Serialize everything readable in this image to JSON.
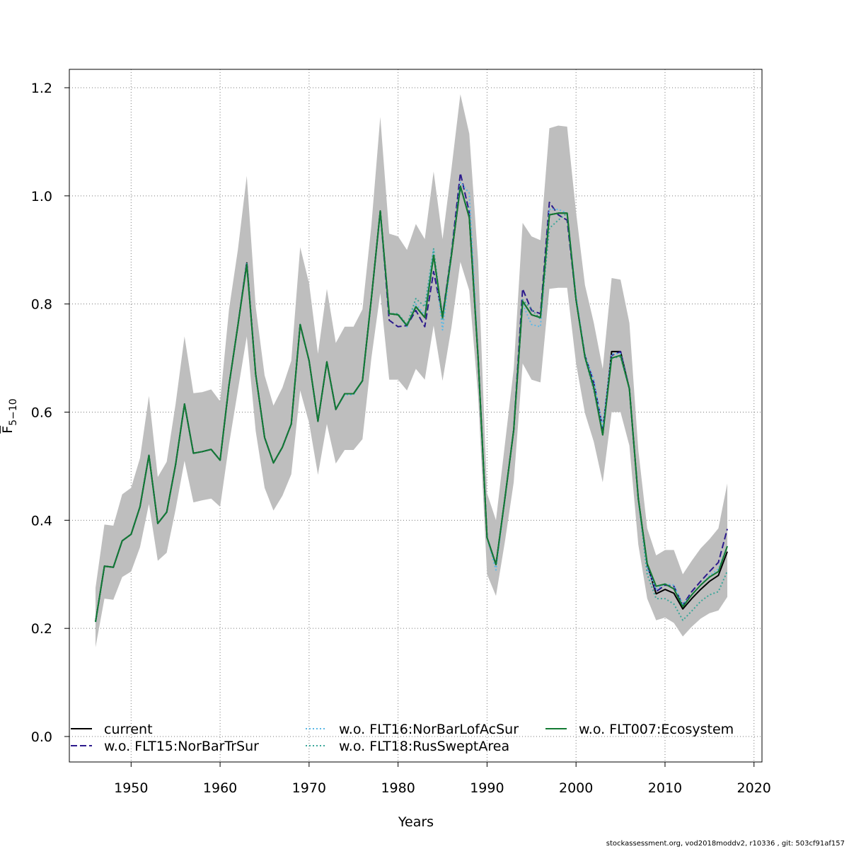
{
  "chart_data": {
    "type": "line",
    "xlabel": "Years",
    "ylabel": "F",
    "ylabel_sub": "5−10",
    "xlim": [
      1943,
      2021
    ],
    "ylim": [
      -0.05,
      1.24
    ],
    "xticks": [
      "1950",
      "1960",
      "1970",
      "1980",
      "1990",
      "2000",
      "2010",
      "2020"
    ],
    "yticks": [
      "0.0",
      "0.2",
      "0.4",
      "0.6",
      "0.8",
      "1.0",
      "1.2"
    ],
    "grid": true,
    "legend_position": "bottom",
    "x": [
      1946,
      1947,
      1948,
      1949,
      1950,
      1951,
      1952,
      1953,
      1954,
      1955,
      1956,
      1957,
      1958,
      1959,
      1960,
      1961,
      1962,
      1963,
      1964,
      1965,
      1966,
      1967,
      1968,
      1969,
      1970,
      1971,
      1972,
      1973,
      1974,
      1975,
      1976,
      1977,
      1978,
      1979,
      1980,
      1981,
      1982,
      1983,
      1984,
      1985,
      1986,
      1987,
      1988,
      1989,
      1990,
      1991,
      1992,
      1993,
      1994,
      1995,
      1996,
      1997,
      1998,
      1999,
      2000,
      2001,
      2002,
      2003,
      2004,
      2005,
      2006,
      2007,
      2008,
      2009,
      2010,
      2011,
      2012,
      2013,
      2014,
      2015,
      2016,
      2017
    ],
    "ci_lower": [
      0.165,
      0.255,
      0.253,
      0.295,
      0.305,
      0.35,
      0.43,
      0.325,
      0.34,
      0.42,
      0.51,
      0.433,
      0.437,
      0.44,
      0.425,
      0.54,
      0.64,
      0.74,
      0.565,
      0.46,
      0.418,
      0.445,
      0.485,
      0.64,
      0.58,
      0.484,
      0.578,
      0.505,
      0.53,
      0.53,
      0.55,
      0.7,
      0.82,
      0.66,
      0.66,
      0.64,
      0.68,
      0.66,
      0.76,
      0.658,
      0.757,
      0.878,
      0.825,
      0.63,
      0.3,
      0.26,
      0.36,
      0.47,
      0.69,
      0.66,
      0.655,
      0.828,
      0.83,
      0.83,
      0.69,
      0.598,
      0.545,
      0.47,
      0.6,
      0.6,
      0.538,
      0.355,
      0.255,
      0.215,
      0.22,
      0.21,
      0.185,
      0.203,
      0.218,
      0.228,
      0.233,
      0.258
    ],
    "ci_upper": [
      0.275,
      0.392,
      0.39,
      0.448,
      0.46,
      0.515,
      0.63,
      0.48,
      0.508,
      0.615,
      0.74,
      0.635,
      0.637,
      0.642,
      0.62,
      0.79,
      0.9,
      1.037,
      0.795,
      0.668,
      0.612,
      0.645,
      0.695,
      0.905,
      0.838,
      0.708,
      0.828,
      0.728,
      0.758,
      0.758,
      0.79,
      0.945,
      1.146,
      0.93,
      0.925,
      0.9,
      0.948,
      0.92,
      1.045,
      0.92,
      1.05,
      1.188,
      1.115,
      0.88,
      0.45,
      0.4,
      0.54,
      0.68,
      0.95,
      0.925,
      0.918,
      1.125,
      1.13,
      1.128,
      0.97,
      0.835,
      0.765,
      0.68,
      0.848,
      0.845,
      0.765,
      0.53,
      0.385,
      0.335,
      0.345,
      0.345,
      0.3,
      0.325,
      0.348,
      0.365,
      0.385,
      0.468
    ],
    "series": [
      {
        "name": "current",
        "color": "#000000",
        "dash": "solid",
        "values": [
          0.212,
          0.315,
          0.313,
          0.362,
          0.374,
          0.425,
          0.52,
          0.394,
          0.415,
          0.503,
          0.615,
          0.524,
          0.527,
          0.531,
          0.511,
          0.65,
          0.76,
          0.876,
          0.67,
          0.553,
          0.506,
          0.535,
          0.578,
          0.762,
          0.695,
          0.583,
          0.693,
          0.605,
          0.634,
          0.634,
          0.658,
          0.81,
          0.972,
          0.782,
          0.78,
          0.76,
          0.795,
          0.775,
          0.89,
          0.775,
          0.89,
          1.018,
          0.96,
          0.7,
          0.368,
          0.318,
          0.44,
          0.567,
          0.805,
          0.78,
          0.775,
          0.965,
          0.968,
          0.968,
          0.808,
          0.702,
          0.645,
          0.558,
          0.712,
          0.712,
          0.643,
          0.44,
          0.318,
          0.264,
          0.272,
          0.265,
          0.236,
          0.255,
          0.272,
          0.287,
          0.298,
          0.342
        ]
      },
      {
        "name": "w.o. FLT15:NorBarTrSur",
        "color": "#2c1a8c",
        "dash": "longdash",
        "values": [
          0.212,
          0.315,
          0.313,
          0.362,
          0.374,
          0.425,
          0.52,
          0.394,
          0.415,
          0.503,
          0.615,
          0.524,
          0.527,
          0.531,
          0.511,
          0.65,
          0.76,
          0.878,
          0.67,
          0.553,
          0.506,
          0.535,
          0.578,
          0.762,
          0.695,
          0.583,
          0.693,
          0.605,
          0.634,
          0.634,
          0.658,
          0.81,
          0.972,
          0.77,
          0.758,
          0.76,
          0.788,
          0.758,
          0.86,
          0.778,
          0.895,
          1.042,
          0.97,
          0.7,
          0.368,
          0.318,
          0.44,
          0.567,
          0.828,
          0.788,
          0.782,
          0.988,
          0.965,
          0.955,
          0.808,
          0.705,
          0.655,
          0.57,
          0.705,
          0.712,
          0.643,
          0.44,
          0.318,
          0.268,
          0.28,
          0.278,
          0.243,
          0.268,
          0.287,
          0.305,
          0.322,
          0.384
        ]
      },
      {
        "name": "w.o. FLT16:NorBarLofAcSur",
        "color": "#5bb8e6",
        "dash": "dotted",
        "values": [
          0.212,
          0.315,
          0.313,
          0.362,
          0.374,
          0.425,
          0.52,
          0.394,
          0.415,
          0.503,
          0.615,
          0.524,
          0.527,
          0.531,
          0.511,
          0.65,
          0.76,
          0.876,
          0.67,
          0.553,
          0.506,
          0.535,
          0.578,
          0.762,
          0.695,
          0.583,
          0.693,
          0.605,
          0.632,
          0.632,
          0.658,
          0.81,
          0.97,
          0.782,
          0.78,
          0.758,
          0.8,
          0.78,
          0.9,
          0.752,
          0.89,
          1.025,
          1.005,
          0.7,
          0.368,
          0.308,
          0.44,
          0.567,
          0.8,
          0.762,
          0.758,
          0.975,
          0.975,
          0.968,
          0.815,
          0.705,
          0.66,
          0.572,
          0.708,
          0.708,
          0.643,
          0.44,
          0.31,
          0.272,
          0.282,
          0.28,
          0.245,
          0.262,
          0.28,
          0.297,
          0.31,
          0.352
        ]
      },
      {
        "name": "w.o. FLT18:RusSweptArea",
        "color": "#3aa79a",
        "dash": "dotted",
        "values": [
          0.212,
          0.315,
          0.313,
          0.362,
          0.374,
          0.425,
          0.52,
          0.394,
          0.415,
          0.503,
          0.615,
          0.524,
          0.527,
          0.531,
          0.511,
          0.65,
          0.76,
          0.876,
          0.67,
          0.553,
          0.506,
          0.535,
          0.578,
          0.762,
          0.695,
          0.583,
          0.693,
          0.605,
          0.634,
          0.634,
          0.658,
          0.81,
          0.972,
          0.782,
          0.782,
          0.762,
          0.81,
          0.795,
          0.902,
          0.77,
          0.895,
          1.015,
          0.965,
          0.7,
          0.368,
          0.318,
          0.44,
          0.567,
          0.808,
          0.79,
          0.772,
          0.94,
          0.955,
          0.968,
          0.808,
          0.7,
          0.64,
          0.56,
          0.7,
          0.702,
          0.643,
          0.44,
          0.3,
          0.255,
          0.255,
          0.245,
          0.215,
          0.232,
          0.25,
          0.262,
          0.268,
          0.306
        ]
      },
      {
        "name": "w.o. FLT007:Ecosystem",
        "color": "#137a33",
        "dash": "solid",
        "values": [
          0.212,
          0.315,
          0.313,
          0.362,
          0.374,
          0.425,
          0.52,
          0.394,
          0.415,
          0.503,
          0.615,
          0.524,
          0.527,
          0.531,
          0.511,
          0.65,
          0.76,
          0.873,
          0.67,
          0.553,
          0.506,
          0.535,
          0.578,
          0.762,
          0.695,
          0.583,
          0.693,
          0.605,
          0.634,
          0.634,
          0.658,
          0.81,
          0.972,
          0.782,
          0.78,
          0.76,
          0.795,
          0.775,
          0.89,
          0.775,
          0.89,
          1.018,
          0.96,
          0.7,
          0.368,
          0.318,
          0.44,
          0.567,
          0.805,
          0.78,
          0.775,
          0.965,
          0.968,
          0.968,
          0.808,
          0.702,
          0.645,
          0.558,
          0.7,
          0.705,
          0.643,
          0.44,
          0.32,
          0.278,
          0.282,
          0.273,
          0.24,
          0.262,
          0.28,
          0.295,
          0.305,
          0.352
        ]
      }
    ]
  },
  "legend": {
    "items": [
      {
        "label": "current",
        "color": "#000000",
        "dash": "solid"
      },
      {
        "label": "w.o. FLT15:NorBarTrSur",
        "color": "#2c1a8c",
        "dash": "longdash"
      },
      {
        "label": "w.o. FLT16:NorBarLofAcSur",
        "color": "#5bb8e6",
        "dash": "dotted"
      },
      {
        "label": "w.o. FLT18:RusSweptArea",
        "color": "#3aa79a",
        "dash": "dotted"
      },
      {
        "label": "w.o. FLT007:Ecosystem",
        "color": "#137a33",
        "dash": "solid"
      }
    ]
  },
  "band_color": "#bebebe",
  "footer": "stockassessment.org, vod2018moddv2, r10336 , git: 503cf91af157"
}
